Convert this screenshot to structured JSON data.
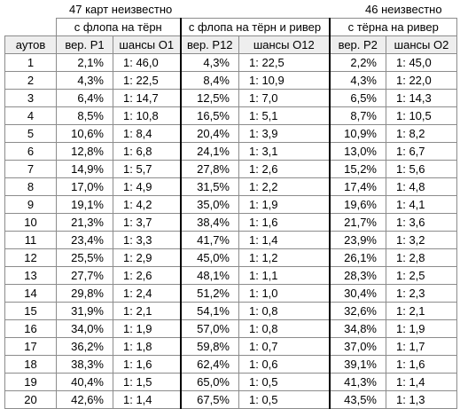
{
  "top_labels": {
    "left": "47 карт неизвестно",
    "right": "46 неизвестно"
  },
  "group_headers": [
    "с флопа на тёрн",
    "с флопа на тёрн и ривер",
    "с тёрна на ривер"
  ],
  "column_headers": [
    "аутов",
    "вер. P1",
    "шансы O1",
    "вер. P12",
    "шансы O12",
    "вер. P2",
    "шансы O2"
  ],
  "rows": [
    [
      "1",
      "2,1%",
      "1: 46,0",
      "4,3%",
      "1: 22,5",
      "2,2%",
      "1: 45,0"
    ],
    [
      "2",
      "4,3%",
      "1: 22,5",
      "8,4%",
      "1: 10,9",
      "4,3%",
      "1: 22,0"
    ],
    [
      "3",
      "6,4%",
      "1: 14,7",
      "12,5%",
      "1: 7,0",
      "6,5%",
      "1: 14,3"
    ],
    [
      "4",
      "8,5%",
      "1: 10,8",
      "16,5%",
      "1: 5,1",
      "8,7%",
      "1: 10,5"
    ],
    [
      "5",
      "10,6%",
      "1: 8,4",
      "20,4%",
      "1: 3,9",
      "10,9%",
      "1: 8,2"
    ],
    [
      "6",
      "12,8%",
      "1: 6,8",
      "24,1%",
      "1: 3,1",
      "13,0%",
      "1: 6,7"
    ],
    [
      "7",
      "14,9%",
      "1: 5,7",
      "27,8%",
      "1: 2,6",
      "15,2%",
      "1: 5,6"
    ],
    [
      "8",
      "17,0%",
      "1: 4,9",
      "31,5%",
      "1: 2,2",
      "17,4%",
      "1: 4,8"
    ],
    [
      "9",
      "19,1%",
      "1: 4,2",
      "35,0%",
      "1: 1,9",
      "19,6%",
      "1: 4,1"
    ],
    [
      "10",
      "21,3%",
      "1: 3,7",
      "38,4%",
      "1: 1,6",
      "21,7%",
      "1: 3,6"
    ],
    [
      "11",
      "23,4%",
      "1: 3,3",
      "41,7%",
      "1: 1,4",
      "23,9%",
      "1: 3,2"
    ],
    [
      "12",
      "25,5%",
      "1: 2,9",
      "45,0%",
      "1: 1,2",
      "26,1%",
      "1: 2,8"
    ],
    [
      "13",
      "27,7%",
      "1: 2,6",
      "48,1%",
      "1: 1,1",
      "28,3%",
      "1: 2,5"
    ],
    [
      "14",
      "29,8%",
      "1: 2,4",
      "51,2%",
      "1: 1,0",
      "30,4%",
      "1: 2,3"
    ],
    [
      "15",
      "31,9%",
      "1: 2,1",
      "54,1%",
      "1: 0,8",
      "32,6%",
      "1: 2,1"
    ],
    [
      "16",
      "34,0%",
      "1: 1,9",
      "57,0%",
      "1: 0,8",
      "34,8%",
      "1: 1,9"
    ],
    [
      "17",
      "36,2%",
      "1: 1,8",
      "59,8%",
      "1: 0,7",
      "37,0%",
      "1: 1,7"
    ],
    [
      "18",
      "38,3%",
      "1: 1,6",
      "62,4%",
      "1: 0,6",
      "39,1%",
      "1: 1,6"
    ],
    [
      "19",
      "40,4%",
      "1: 1,5",
      "65,0%",
      "1: 0,5",
      "41,3%",
      "1: 1,4"
    ],
    [
      "20",
      "42,6%",
      "1: 1,4",
      "67,5%",
      "1: 0,5",
      "43,5%",
      "1: 1,3"
    ]
  ]
}
